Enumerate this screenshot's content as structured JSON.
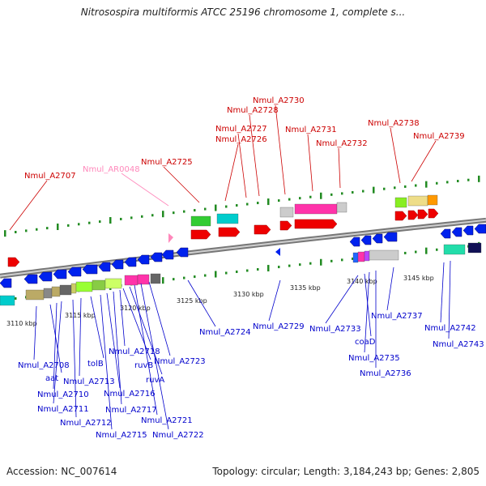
{
  "title": "Nitrosospira multiformis ATCC 25196 chromosome 1, complete s...",
  "footer": {
    "accession": "Accession: NC_007614",
    "summary": "Topology: circular; Length: 3,184,243 bp; Genes: 2,805"
  },
  "colors": {
    "forward_label": "#cc0000",
    "reverse_label": "#0000cc",
    "rna_label": "#ff88bb",
    "forward_gene": "#ee0000",
    "reverse_gene": "#0022ee",
    "backbone": "#888888",
    "tick": "#228b22"
  },
  "scale_labels": [
    "3110 kbp",
    "3115 kbp",
    "3120 kbp",
    "3125 kbp",
    "3130 kbp",
    "3135 kbp",
    "3140 kbp",
    "3145 kbp"
  ],
  "forward_genes": [
    "Nmul_A2707",
    "Nmul_A2725",
    "Nmul_A2726",
    "Nmul_A2727",
    "Nmul_A2728",
    "Nmul_A2730",
    "Nmul_A2731",
    "Nmul_A2732",
    "Nmul_A2738",
    "Nmul_A2739"
  ],
  "rna_genes": [
    "Nmul_AR0048"
  ],
  "reverse_genes": [
    "Nmul_A2708",
    "aat",
    "Nmul_A2710",
    "Nmul_A2711",
    "Nmul_A2712",
    "Nmul_A2713",
    "tolB",
    "Nmul_A2715",
    "Nmul_A2716",
    "Nmul_A2717",
    "Nmul_A2718",
    "ruvB",
    "ruvA",
    "Nmul_A2721",
    "Nmul_A2722",
    "Nmul_A2723",
    "Nmul_A2724",
    "Nmul_A2729",
    "Nmul_A2733",
    "coaD",
    "Nmul_A2735",
    "Nmul_A2736",
    "Nmul_A2737",
    "Nmul_A2742",
    "Nmul_A2743"
  ]
}
